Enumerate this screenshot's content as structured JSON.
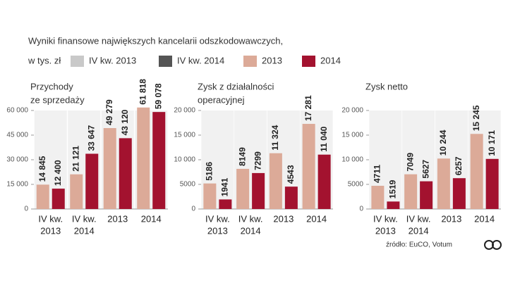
{
  "header": {
    "title_lines": [
      "Wyniki finansowe największych kancelarii odszkodowawczych,",
      "w tys. zł"
    ],
    "legend": [
      {
        "name": "IV kw. 2013",
        "color": "#c9c9c9"
      },
      {
        "name": "IV kw. 2014",
        "color": "#555555"
      },
      {
        "name": "2013",
        "color": "#dcaa98"
      },
      {
        "name": "2014",
        "color": "#a3122f"
      }
    ],
    "source": "źródło: EuCO, Votum"
  },
  "chart_data": [
    {
      "type": "bar",
      "title": [
        "Przychody",
        "ze sprzedaży"
      ],
      "categories": [
        [
          "IV kw.",
          "2013"
        ],
        [
          "IV kw.",
          "2014"
        ],
        [
          "2013"
        ],
        [
          "2014"
        ]
      ],
      "series": [
        {
          "color": "#dcaa98",
          "values": [
            14845,
            21121,
            49279,
            61818
          ],
          "value_labels": [
            "14 845",
            "21 121",
            "49 279",
            "61 818"
          ]
        },
        {
          "color": "#a3122f",
          "values": [
            12400,
            33647,
            43120,
            59078
          ],
          "value_labels": [
            "12 400",
            "33 647",
            "43 120",
            "59 078"
          ]
        }
      ],
      "ylim": [
        0,
        60000
      ],
      "yticks": [
        0,
        {
          "value": 15000,
          "label": "15 000"
        },
        {
          "value": 30000,
          "label": "30 000"
        },
        {
          "value": 45000,
          "label": "45 000"
        },
        {
          "value": 60000,
          "label": "60 000"
        }
      ]
    },
    {
      "type": "bar",
      "title": [
        "Zysk z działalności",
        "operacyjnej"
      ],
      "categories": [
        [
          "IV kw.",
          "2013"
        ],
        [
          "IV kw.",
          "2014"
        ],
        [
          "2013"
        ],
        [
          "2014"
        ]
      ],
      "series": [
        {
          "color": "#dcaa98",
          "values": [
            5186,
            8149,
            11324,
            17281
          ],
          "value_labels": [
            "5186",
            "8149",
            "11 324",
            "17 281"
          ]
        },
        {
          "color": "#a3122f",
          "values": [
            1941,
            7299,
            4543,
            11040
          ],
          "value_labels": [
            "1941",
            "7299",
            "4543",
            "11 040"
          ]
        }
      ],
      "ylim": [
        0,
        20000
      ],
      "yticks": [
        0,
        5000,
        {
          "value": 10000,
          "label": "10 000"
        },
        {
          "value": 15000,
          "label": "15 000"
        },
        {
          "value": 20000,
          "label": "20 000"
        }
      ]
    },
    {
      "type": "bar",
      "title": [
        "Zysk netto"
      ],
      "categories": [
        [
          "IV kw.",
          "2013"
        ],
        [
          "IV kw.",
          "2014"
        ],
        [
          "2013"
        ],
        [
          "2014"
        ]
      ],
      "series": [
        {
          "color": "#dcaa98",
          "values": [
            4711,
            7049,
            10244,
            15245
          ],
          "value_labels": [
            "4711",
            "7049",
            "10 244",
            "15 245"
          ]
        },
        {
          "color": "#a3122f",
          "values": [
            1519,
            5627,
            6257,
            10171
          ],
          "value_labels": [
            "1519",
            "5627",
            "6257",
            "10 171"
          ]
        }
      ],
      "ylim": [
        0,
        20000
      ],
      "yticks": [
        0,
        5000,
        {
          "value": 10000,
          "label": "10 000"
        },
        {
          "value": 15000,
          "label": "15 000"
        },
        {
          "value": 20000,
          "label": "20 000"
        }
      ]
    }
  ]
}
